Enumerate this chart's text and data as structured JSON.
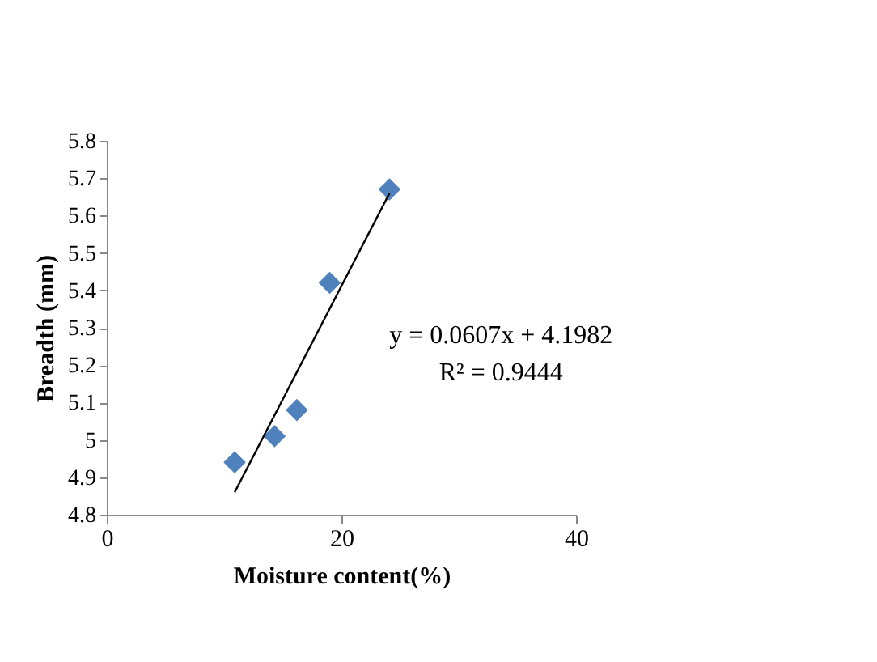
{
  "chart_data": {
    "type": "scatter",
    "xlabel": "Moisture content(%)",
    "ylabel": "Breadth  (mm)",
    "xlim": [
      0,
      40
    ],
    "xticks": [
      0,
      20,
      40
    ],
    "ylim": [
      4.8,
      5.8
    ],
    "yticks": [
      4.8,
      4.9,
      5,
      5.1,
      5.2,
      5.3,
      5.4,
      5.5,
      5.6,
      5.7,
      5.8
    ],
    "grid": false,
    "series": [
      {
        "color": "#4f81bd",
        "marker": "diamond",
        "x": [
          10.9,
          14.3,
          16.2,
          19.0,
          24.1
        ],
        "values": [
          4.94,
          5.01,
          5.08,
          5.42,
          5.67
        ]
      },
      {
        "type": "line",
        "color": "#000000",
        "marker": "none",
        "line_style": "solid",
        "x": [
          10.9,
          24.1
        ],
        "values": [
          4.86,
          5.66
        ]
      }
    ],
    "annotations": [
      "y = 0.0607x   + 4.1982",
      "R² = 0.9444"
    ]
  }
}
